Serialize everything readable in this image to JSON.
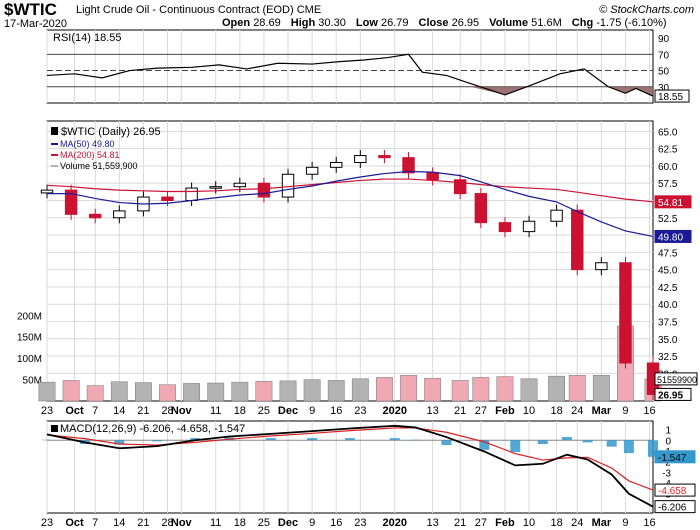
{
  "header": {
    "symbol": "$WTIC",
    "description": "Light Crude Oil - Continuous Contract (EOD)",
    "exchange": "CME",
    "date": "17-Mar-2020",
    "open_label": "Open",
    "open": "28.69",
    "high_label": "High",
    "high": "30.30",
    "low_label": "Low",
    "low": "26.79",
    "close_label": "Close",
    "close": "26.95",
    "volume_label": "Volume",
    "volume": "51.6M",
    "chg_label": "Chg",
    "chg": "-1.75 (-6.10%)",
    "copyright": "© StockCharts.com"
  },
  "colors": {
    "up": "#000000",
    "down": "#cc1133",
    "ma50": "#1a1a99",
    "ma200": "#cc1133",
    "vol_up": "#b3b3b3",
    "vol_down": "#f0a9b3",
    "rsi_fill": "#8b5a5a",
    "macd_line": "#000000",
    "macd_signal": "#dd2222",
    "macd_hist": "#3399cc",
    "grid": "#d9d9d9"
  },
  "chart_data": [
    {
      "type": "line",
      "title": "RSI(14) 18.55",
      "series": [
        {
          "name": "RSI(14)",
          "x": [
            "2019-09-23",
            "2019-10-01",
            "2019-10-09",
            "2019-10-17",
            "2019-10-25",
            "2019-11-04",
            "2019-11-12",
            "2019-11-20",
            "2019-11-29",
            "2019-12-09",
            "2019-12-17",
            "2019-12-24",
            "2019-12-31",
            "2020-01-06",
            "2020-01-10",
            "2020-01-17",
            "2020-01-24",
            "2020-02-03",
            "2020-02-10",
            "2020-02-19",
            "2020-02-26",
            "2020-03-04",
            "2020-03-09",
            "2020-03-12",
            "2020-03-17"
          ],
          "values": [
            44,
            46,
            41,
            50,
            53,
            54,
            57,
            52,
            59,
            58,
            61,
            63,
            66,
            70,
            48,
            44,
            34,
            20,
            31,
            46,
            52,
            30,
            22,
            28,
            18.55
          ]
        }
      ],
      "yticks": [
        30,
        50,
        70,
        90
      ],
      "ylim": [
        10,
        100
      ],
      "ref_lines": [
        30,
        50,
        70
      ],
      "value_label": "18.55"
    },
    {
      "type": "candlestick",
      "title": "$WTIC (Daily) 26.95",
      "legend": [
        {
          "name": "MA(50) 49.80",
          "color": "#1a1a99"
        },
        {
          "name": "MA(200) 54.81",
          "color": "#cc1133"
        },
        {
          "name": "Volume 51,559,900",
          "color": "#b3b3b3"
        }
      ],
      "yticks": [
        30.0,
        32.5,
        35.0,
        37.5,
        40.0,
        42.5,
        45.0,
        47.5,
        50.0,
        52.5,
        55.0,
        57.5,
        60.0,
        62.5,
        65.0
      ],
      "ylim": [
        26.0,
        66.5
      ],
      "volume_ticks": [
        "50M",
        "100M",
        "150M",
        "200M"
      ],
      "volume_tick_values": [
        50,
        100,
        150,
        200
      ],
      "volume_max": 210,
      "price_labels": {
        "ma200": "54.81",
        "ma50": "49.80",
        "volume": "51559900",
        "close": "26.95"
      },
      "candles": {
        "x": [
          "2019-09-23",
          "2019-09-30",
          "2019-10-07",
          "2019-10-14",
          "2019-10-21",
          "2019-10-28",
          "2019-11-04",
          "2019-11-11",
          "2019-11-18",
          "2019-11-25",
          "2019-12-02",
          "2019-12-09",
          "2019-12-16",
          "2019-12-23",
          "2019-12-30",
          "2020-01-06",
          "2020-01-13",
          "2020-01-21",
          "2020-01-27",
          "2020-02-03",
          "2020-02-10",
          "2020-02-18",
          "2020-02-24",
          "2020-03-02",
          "2020-03-09",
          "2020-03-17"
        ],
        "close": [
          56.5,
          53.0,
          52.5,
          53.5,
          55.5,
          55.0,
          56.8,
          57.0,
          57.5,
          55.5,
          58.8,
          59.8,
          60.5,
          61.5,
          61.2,
          59.0,
          58.0,
          56.0,
          51.8,
          50.5,
          52.0,
          53.6,
          45.0,
          46.0,
          31.5,
          26.95
        ]
      },
      "ma50": [
        56.0,
        56.0,
        55.3,
        54.7,
        54.5,
        54.6,
        55.0,
        55.4,
        55.8,
        56.0,
        56.6,
        57.1,
        57.8,
        58.4,
        58.9,
        59.2,
        59.1,
        58.6,
        57.7,
        56.6,
        55.6,
        54.8,
        53.4,
        51.9,
        50.6,
        49.8
      ],
      "ma200": [
        57.2,
        57.0,
        56.7,
        56.5,
        56.4,
        56.3,
        56.3,
        56.4,
        56.6,
        56.7,
        57.0,
        57.3,
        57.6,
        57.9,
        58.1,
        58.1,
        57.9,
        57.6,
        57.3,
        57.0,
        56.8,
        56.6,
        56.2,
        55.7,
        55.2,
        54.81
      ],
      "volume_millions": [
        44,
        48,
        36,
        45,
        43,
        38,
        41,
        42,
        44,
        46,
        47,
        50,
        48,
        52,
        55,
        60,
        53,
        48,
        55,
        57,
        52,
        58,
        60,
        60,
        175,
        51.6
      ]
    },
    {
      "type": "line",
      "title": "MACD(12,26,9) -6.206, -4.658, -1.547",
      "series": [
        {
          "name": "MACD(12,26,9) -6.206",
          "x": [
            "2019-09-23",
            "2019-10-04",
            "2019-10-14",
            "2019-10-25",
            "2019-11-05",
            "2019-11-15",
            "2019-11-27",
            "2019-12-09",
            "2019-12-20",
            "2020-01-02",
            "2020-01-08",
            "2020-01-17",
            "2020-01-28",
            "2020-02-06",
            "2020-02-14",
            "2020-02-21",
            "2020-02-27",
            "2020-03-05",
            "2020-03-10",
            "2020-03-17"
          ],
          "values": [
            0.55,
            -0.2,
            -0.75,
            -0.55,
            0.0,
            0.35,
            0.6,
            0.85,
            1.1,
            1.35,
            1.2,
            0.3,
            -1.05,
            -2.35,
            -2.2,
            -1.35,
            -1.8,
            -3.2,
            -5.0,
            -6.206
          ]
        },
        {
          "name": "-4.658",
          "x": [
            "2019-09-23",
            "2019-10-04",
            "2019-10-14",
            "2019-10-25",
            "2019-11-05",
            "2019-11-15",
            "2019-11-27",
            "2019-12-09",
            "2019-12-20",
            "2020-01-02",
            "2020-01-08",
            "2020-01-17",
            "2020-01-28",
            "2020-02-06",
            "2020-02-14",
            "2020-02-21",
            "2020-02-27",
            "2020-03-05",
            "2020-03-10",
            "2020-03-17"
          ],
          "values": [
            0.5,
            0.15,
            -0.35,
            -0.45,
            -0.2,
            0.1,
            0.4,
            0.65,
            0.9,
            1.15,
            1.15,
            0.75,
            -0.15,
            -1.25,
            -1.85,
            -1.65,
            -1.6,
            -2.6,
            -3.8,
            -4.658
          ]
        },
        {
          "name": "-1.547",
          "x": [
            "2019-09-23",
            "2019-10-04",
            "2019-10-14",
            "2019-10-25",
            "2019-11-05",
            "2019-11-15",
            "2019-11-27",
            "2019-12-09",
            "2019-12-20",
            "2020-01-02",
            "2020-01-08",
            "2020-01-17",
            "2020-01-28",
            "2020-02-06",
            "2020-02-14",
            "2020-02-21",
            "2020-02-27",
            "2020-03-05",
            "2020-03-10",
            "2020-03-17"
          ],
          "values": [
            0.05,
            -0.35,
            -0.4,
            -0.1,
            0.2,
            0.25,
            0.2,
            0.2,
            0.2,
            0.2,
            0.05,
            -0.45,
            -0.9,
            -1.1,
            -0.35,
            0.3,
            -0.2,
            -0.6,
            -1.2,
            -1.547
          ]
        }
      ],
      "yticks": [
        -6,
        -5,
        -4,
        -3,
        -2,
        -1,
        0,
        1
      ],
      "ylim": [
        -6.8,
        1.8
      ],
      "value_labels": [
        "-1.547",
        "-4.658",
        "-6.206"
      ]
    }
  ],
  "x_axis": {
    "start": "2019-09-23",
    "end": "2020-03-17",
    "ticks": [
      {
        "label": "23",
        "date": "2019-09-23"
      },
      {
        "label": "Oct",
        "date": "2019-10-01",
        "bold": true
      },
      {
        "label": "7",
        "date": "2019-10-07"
      },
      {
        "label": "14",
        "date": "2019-10-14"
      },
      {
        "label": "21",
        "date": "2019-10-21"
      },
      {
        "label": "28",
        "date": "2019-10-28"
      },
      {
        "label": "Nov",
        "date": "2019-11-01",
        "bold": true
      },
      {
        "label": "11",
        "date": "2019-11-11"
      },
      {
        "label": "18",
        "date": "2019-11-18"
      },
      {
        "label": "25",
        "date": "2019-11-25"
      },
      {
        "label": "Dec",
        "date": "2019-12-02",
        "bold": true
      },
      {
        "label": "9",
        "date": "2019-12-09"
      },
      {
        "label": "16",
        "date": "2019-12-16"
      },
      {
        "label": "23",
        "date": "2019-12-23"
      },
      {
        "label": "2020",
        "date": "2020-01-02",
        "bold": true
      },
      {
        "label": "13",
        "date": "2020-01-13"
      },
      {
        "label": "21",
        "date": "2020-01-21"
      },
      {
        "label": "27",
        "date": "2020-01-27"
      },
      {
        "label": "Feb",
        "date": "2020-02-03",
        "bold": true
      },
      {
        "label": "10",
        "date": "2020-02-10"
      },
      {
        "label": "18",
        "date": "2020-02-18"
      },
      {
        "label": "24",
        "date": "2020-02-24"
      },
      {
        "label": "Mar",
        "date": "2020-03-02",
        "bold": true
      },
      {
        "label": "9",
        "date": "2020-03-09"
      },
      {
        "label": "16",
        "date": "2020-03-16"
      }
    ]
  }
}
